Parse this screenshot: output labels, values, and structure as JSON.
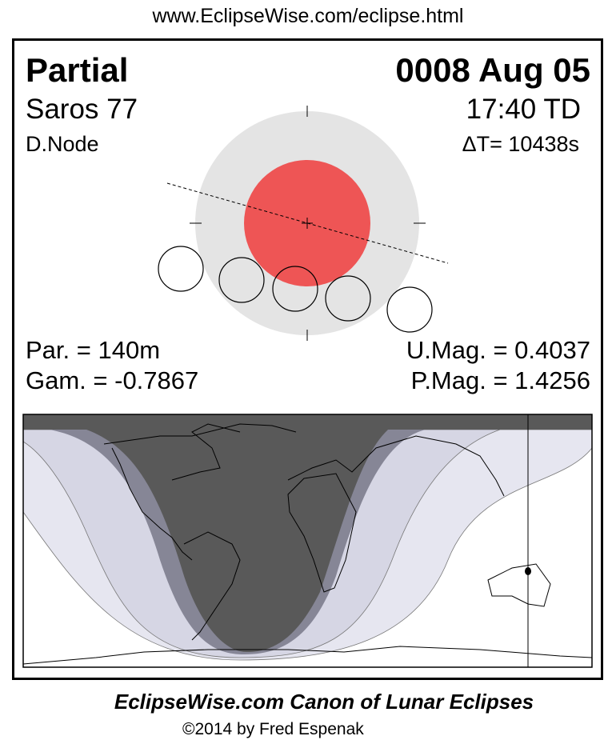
{
  "header": {
    "url": "www.EclipseWise.com/eclipse.html"
  },
  "eclipse": {
    "type": "Partial",
    "date": "0008 Aug 05",
    "saros": "Saros  77",
    "time": "17:40 TD",
    "node": "D.Node",
    "delta_t": "ΔT=  10438s",
    "duration": "Par. = 140m",
    "gamma": "Gam. = -0.7867",
    "umbral_mag": "U.Mag. = 0.4037",
    "penumbral_mag": "P.Mag. = 1.4256"
  },
  "colors": {
    "penumbra": "#e4e4e4",
    "umbra": "#ee5555",
    "map_total": "#595959",
    "map_partial": "#868696",
    "map_penumbral_inner": "#d6d6e4",
    "map_penumbral_outer": "#e6e6f0"
  },
  "footer": {
    "title": "EclipseWise.com Canon of Lunar Eclipses",
    "copyright": "©2014 by Fred Espenak"
  }
}
